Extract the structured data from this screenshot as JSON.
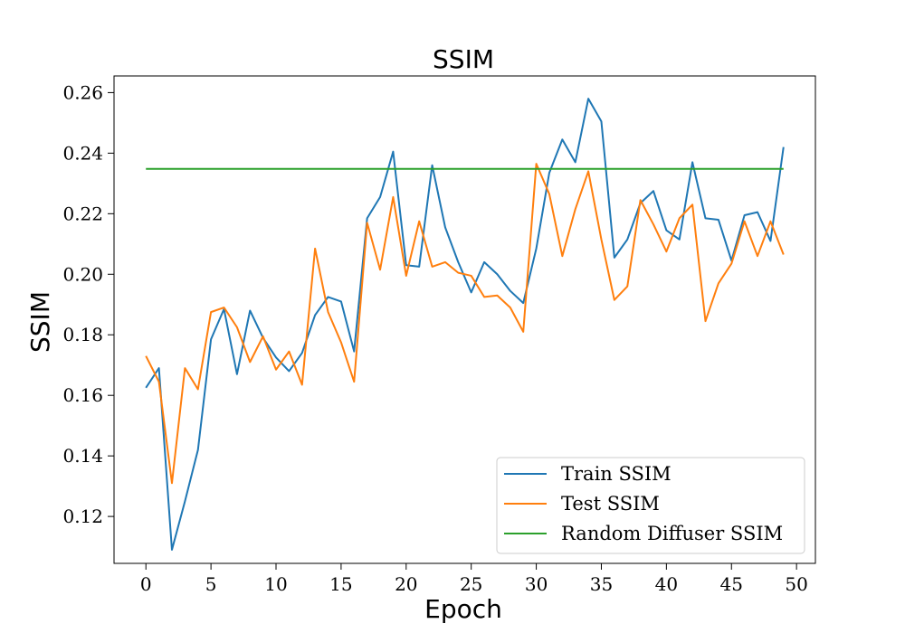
{
  "chart_data": {
    "type": "line",
    "title": "SSIM",
    "xlabel": "Epoch",
    "ylabel": "SSIM",
    "xlim": [
      -2.45,
      51.45
    ],
    "ylim": [
      0.1045,
      0.2655
    ],
    "xticks": [
      0,
      5,
      10,
      15,
      20,
      25,
      30,
      35,
      40,
      45,
      50
    ],
    "yticks": [
      0.12,
      0.14,
      0.16,
      0.18,
      0.2,
      0.22,
      0.24,
      0.26
    ],
    "ytick_labels": [
      "0.12",
      "0.14",
      "0.16",
      "0.18",
      "0.20",
      "0.22",
      "0.24",
      "0.26"
    ],
    "grid": false,
    "legend_position": "lower-right",
    "x": [
      0,
      1,
      2,
      3,
      4,
      5,
      6,
      7,
      8,
      9,
      10,
      11,
      12,
      13,
      14,
      15,
      16,
      17,
      18,
      19,
      20,
      21,
      22,
      23,
      24,
      25,
      26,
      27,
      28,
      29,
      30,
      31,
      32,
      33,
      34,
      35,
      36,
      37,
      38,
      39,
      40,
      41,
      42,
      43,
      44,
      45,
      46,
      47,
      48,
      49
    ],
    "series": [
      {
        "name": "Train SSIM",
        "color": "#1f77b4",
        "values": [
          0.1625,
          0.169,
          0.109,
          0.125,
          0.142,
          0.1785,
          0.1885,
          0.167,
          0.188,
          0.179,
          0.1725,
          0.168,
          0.174,
          0.1865,
          0.1925,
          0.191,
          0.1745,
          0.2185,
          0.2255,
          0.2405,
          0.203,
          0.2025,
          0.236,
          0.2155,
          0.204,
          0.194,
          0.204,
          0.2,
          0.1945,
          0.1905,
          0.2085,
          0.2335,
          0.2445,
          0.237,
          0.258,
          0.2505,
          0.2055,
          0.2115,
          0.2235,
          0.2275,
          0.2145,
          0.2115,
          0.237,
          0.2185,
          0.218,
          0.2045,
          0.2195,
          0.2205,
          0.211,
          0.242
        ]
      },
      {
        "name": "Test SSIM",
        "color": "#ff7f0e",
        "values": [
          0.173,
          0.1645,
          0.131,
          0.169,
          0.162,
          0.1875,
          0.189,
          0.1825,
          0.171,
          0.1795,
          0.1685,
          0.1745,
          0.1635,
          0.2085,
          0.1875,
          0.1775,
          0.1645,
          0.217,
          0.2015,
          0.2255,
          0.1995,
          0.2175,
          0.2025,
          0.204,
          0.2005,
          0.1995,
          0.1925,
          0.193,
          0.189,
          0.181,
          0.2365,
          0.2265,
          0.206,
          0.2215,
          0.234,
          0.2115,
          0.1915,
          0.196,
          0.2245,
          0.2165,
          0.2075,
          0.2185,
          0.223,
          0.1845,
          0.197,
          0.2035,
          0.2175,
          0.206,
          0.2175,
          0.2065
        ]
      },
      {
        "name": "Random Diffuser SSIM",
        "color": "#2ca02c",
        "values": [
          0.2348,
          0.2348,
          0.2348,
          0.2348,
          0.2348,
          0.2348,
          0.2348,
          0.2348,
          0.2348,
          0.2348,
          0.2348,
          0.2348,
          0.2348,
          0.2348,
          0.2348,
          0.2348,
          0.2348,
          0.2348,
          0.2348,
          0.2348,
          0.2348,
          0.2348,
          0.2348,
          0.2348,
          0.2348,
          0.2348,
          0.2348,
          0.2348,
          0.2348,
          0.2348,
          0.2348,
          0.2348,
          0.2348,
          0.2348,
          0.2348,
          0.2348,
          0.2348,
          0.2348,
          0.2348,
          0.2348,
          0.2348,
          0.2348,
          0.2348,
          0.2348,
          0.2348,
          0.2348,
          0.2348,
          0.2348,
          0.2348,
          0.2348
        ]
      }
    ]
  }
}
